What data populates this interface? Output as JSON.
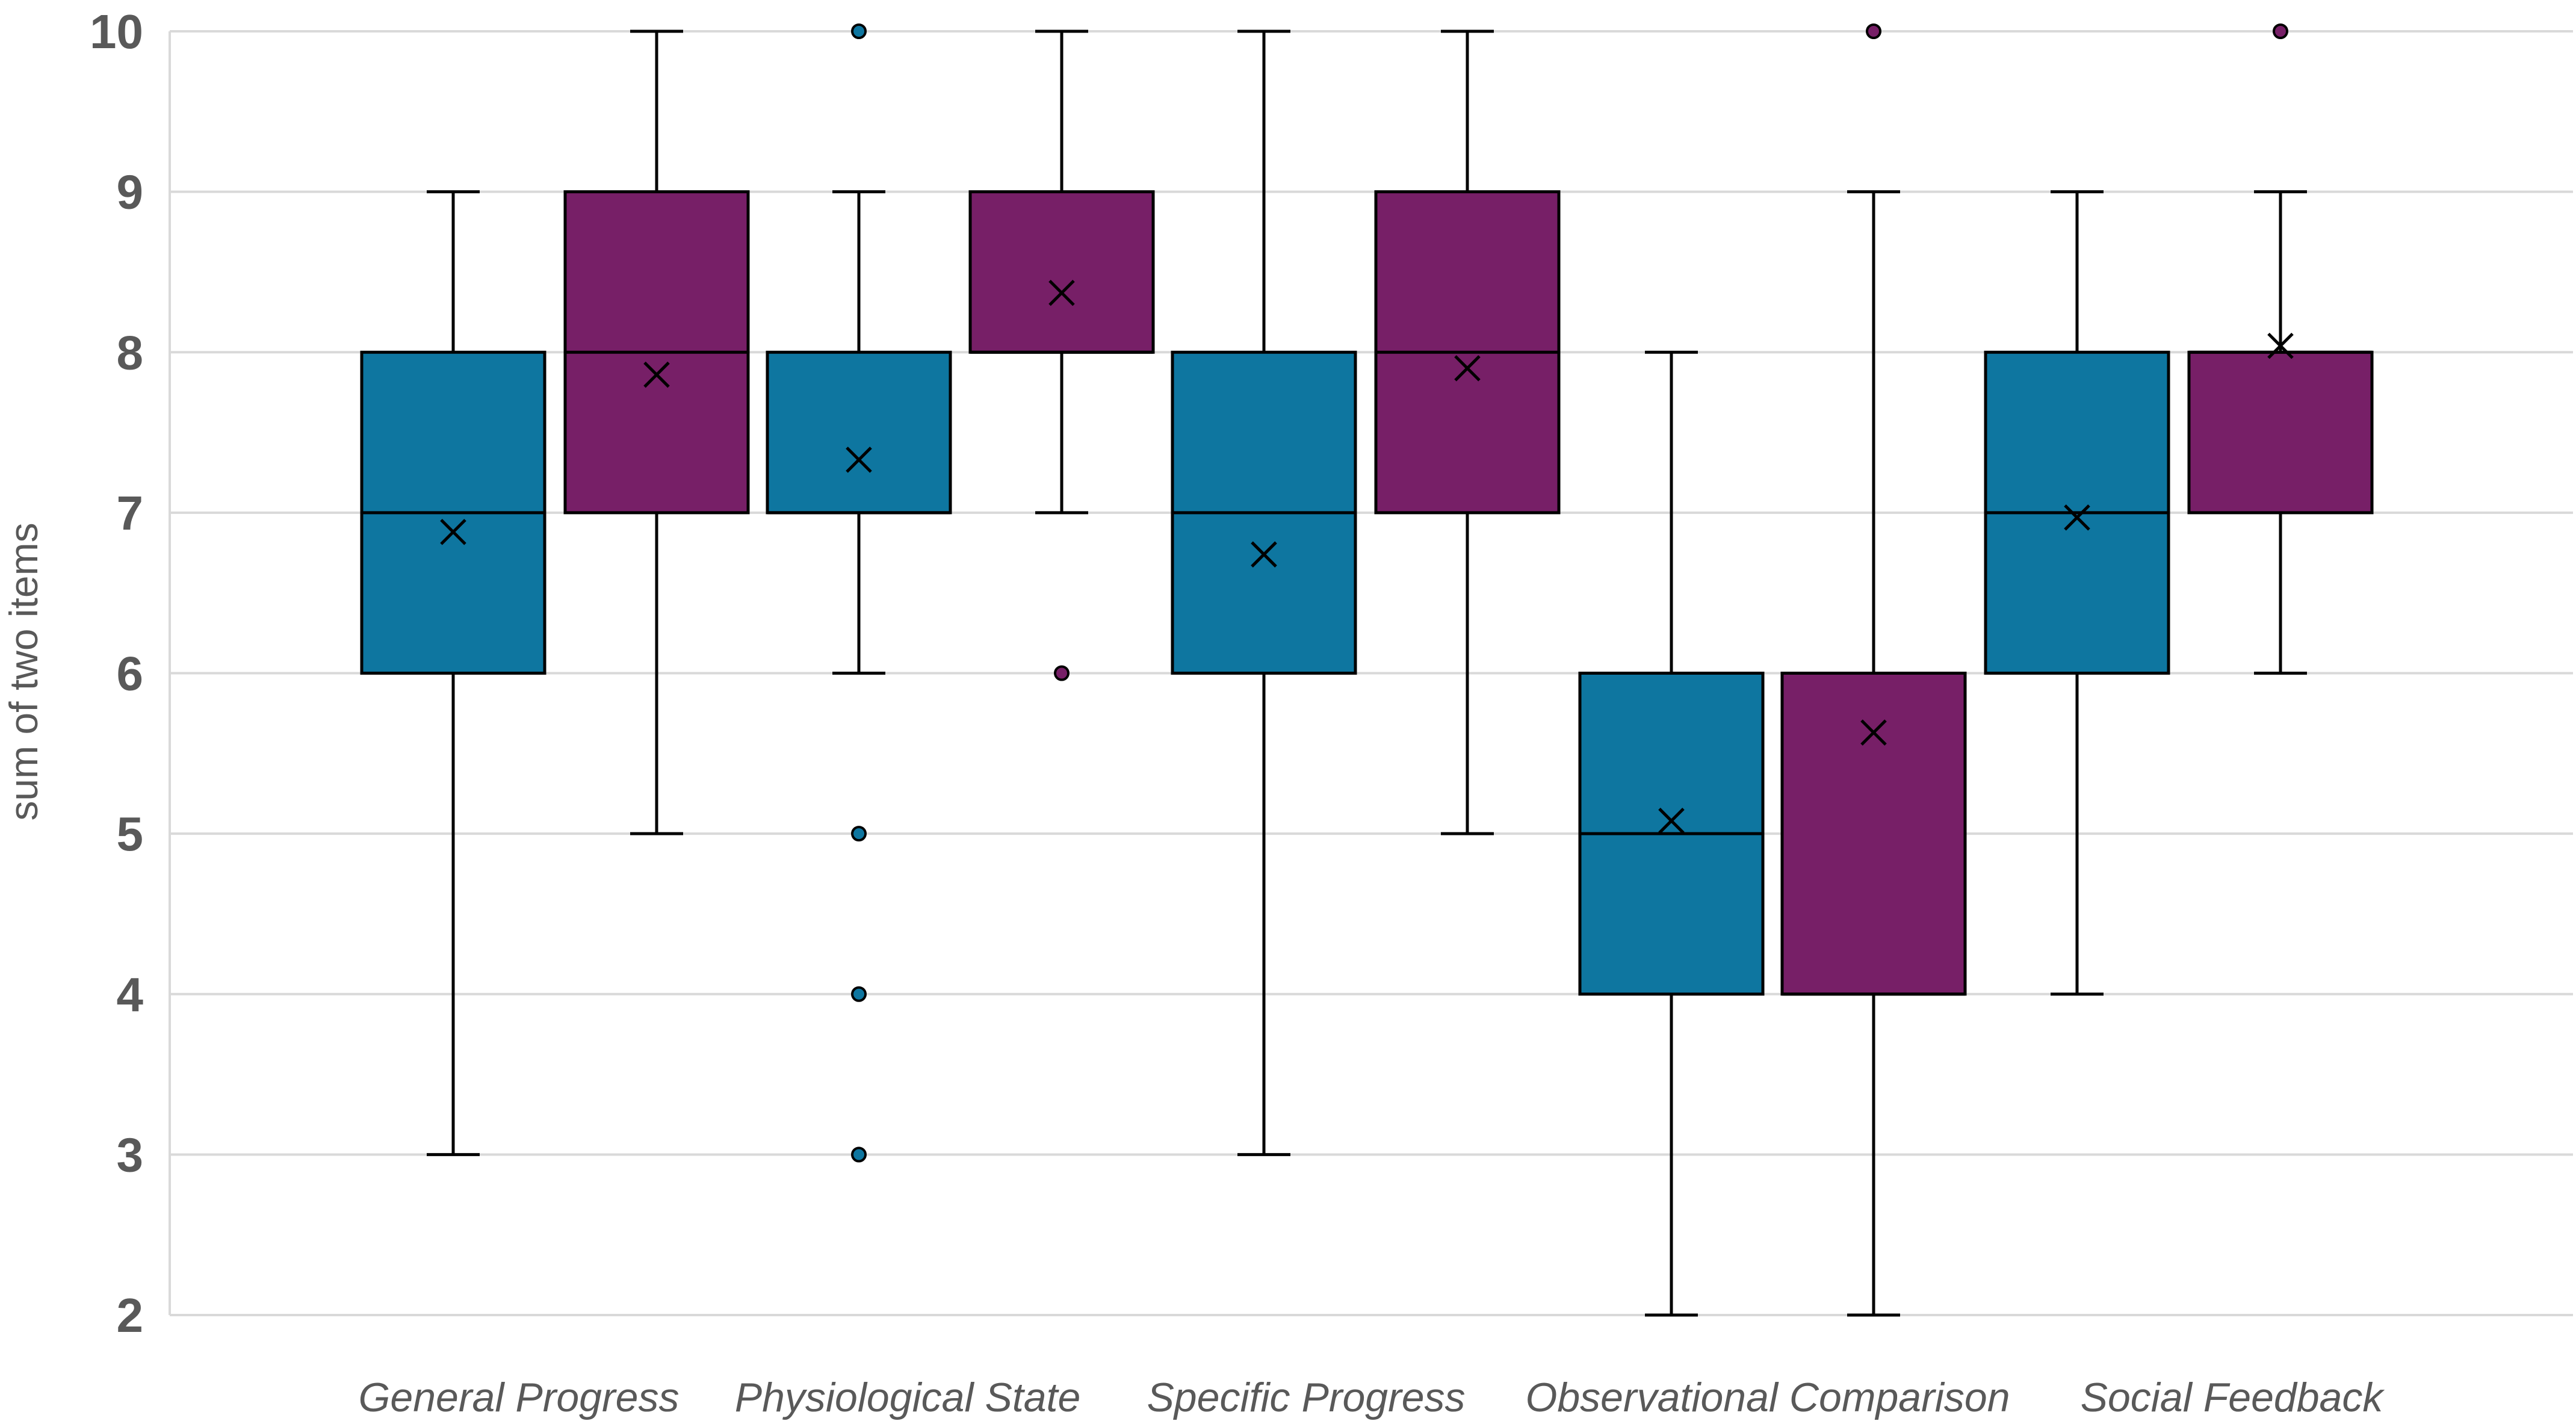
{
  "chart_data": {
    "type": "box",
    "title": "",
    "xlabel": "",
    "ylabel": "sum of two items",
    "ylim": [
      2,
      10
    ],
    "yticks": [
      2,
      3,
      4,
      5,
      6,
      7,
      8,
      9,
      10
    ],
    "grid": true,
    "legend": "none",
    "series_colors": [
      "#0e76a0",
      "#771f67"
    ],
    "categories": [
      "General Progress",
      "Physiological State",
      "Specific Progress",
      "Observational Comparison",
      "Social Feedback"
    ],
    "groups": [
      {
        "category": "General Progress",
        "boxes": [
          {
            "series": 0,
            "min": 3,
            "q1": 6,
            "median": 7,
            "q3": 8,
            "max": 9,
            "mean": 6.88,
            "outliers": []
          },
          {
            "series": 1,
            "min": 5,
            "q1": 7,
            "median": 8,
            "q3": 9,
            "max": 10,
            "mean": 7.86,
            "outliers": []
          }
        ]
      },
      {
        "category": "Physiological State",
        "boxes": [
          {
            "series": 0,
            "min": 6,
            "q1": 7,
            "median": 7,
            "q3": 8,
            "max": 9,
            "mean": 7.33,
            "outliers": [
              10,
              5,
              4,
              3
            ]
          },
          {
            "series": 1,
            "min": 7,
            "q1": 8,
            "median": 8,
            "q3": 9,
            "max": 10,
            "mean": 8.37,
            "outliers": [
              6
            ]
          }
        ]
      },
      {
        "category": "Specific Progress",
        "boxes": [
          {
            "series": 0,
            "min": 3,
            "q1": 6,
            "median": 7,
            "q3": 8,
            "max": 10,
            "mean": 6.74,
            "outliers": []
          },
          {
            "series": 1,
            "min": 5,
            "q1": 7,
            "median": 8,
            "q3": 9,
            "max": 10,
            "mean": 7.9,
            "outliers": []
          }
        ]
      },
      {
        "category": "Observational Comparison",
        "boxes": [
          {
            "series": 0,
            "min": 2,
            "q1": 4,
            "median": 5,
            "q3": 6,
            "max": 8,
            "mean": 5.08,
            "outliers": []
          },
          {
            "series": 1,
            "min": 2,
            "q1": 4,
            "median": 4,
            "q3": 6,
            "max": 9,
            "mean": 5.63,
            "outliers": [
              10
            ]
          }
        ]
      },
      {
        "category": "Social Feedback",
        "boxes": [
          {
            "series": 0,
            "min": 4,
            "q1": 6,
            "median": 7,
            "q3": 8,
            "max": 9,
            "mean": 6.97,
            "outliers": []
          },
          {
            "series": 1,
            "min": 6,
            "q1": 7,
            "median": 8,
            "q3": 8,
            "max": 9,
            "mean": 8.04,
            "outliers": [
              10
            ]
          }
        ]
      }
    ]
  }
}
